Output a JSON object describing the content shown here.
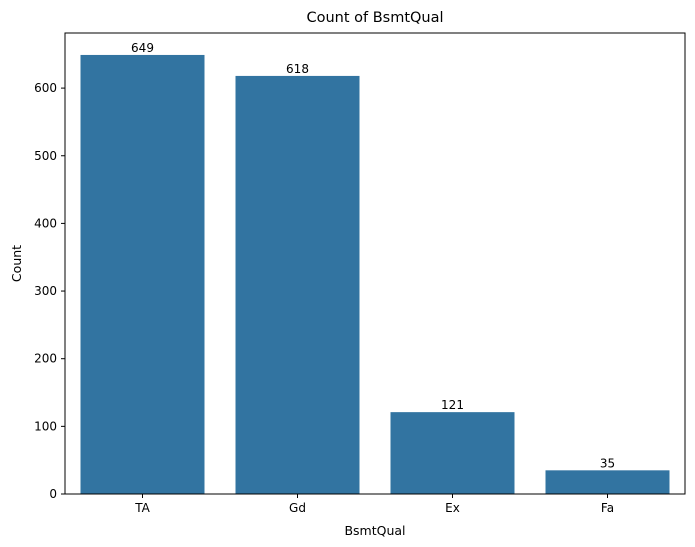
{
  "chart_data": {
    "type": "bar",
    "title": "Count of BsmtQual",
    "xlabel": "BsmtQual",
    "ylabel": "Count",
    "categories": [
      "TA",
      "Gd",
      "Ex",
      "Fa"
    ],
    "values": [
      649,
      618,
      121,
      35
    ],
    "data_labels": [
      "649",
      "618",
      "121",
      "35"
    ],
    "ylim": [
      0,
      681.45
    ],
    "yticks": [
      0,
      100,
      200,
      300,
      400,
      500,
      600
    ],
    "ytick_labels": [
      "0",
      "100",
      "200",
      "300",
      "400",
      "500",
      "600"
    ],
    "grid": false,
    "legend": "none",
    "bar_color": "#3274a1"
  }
}
